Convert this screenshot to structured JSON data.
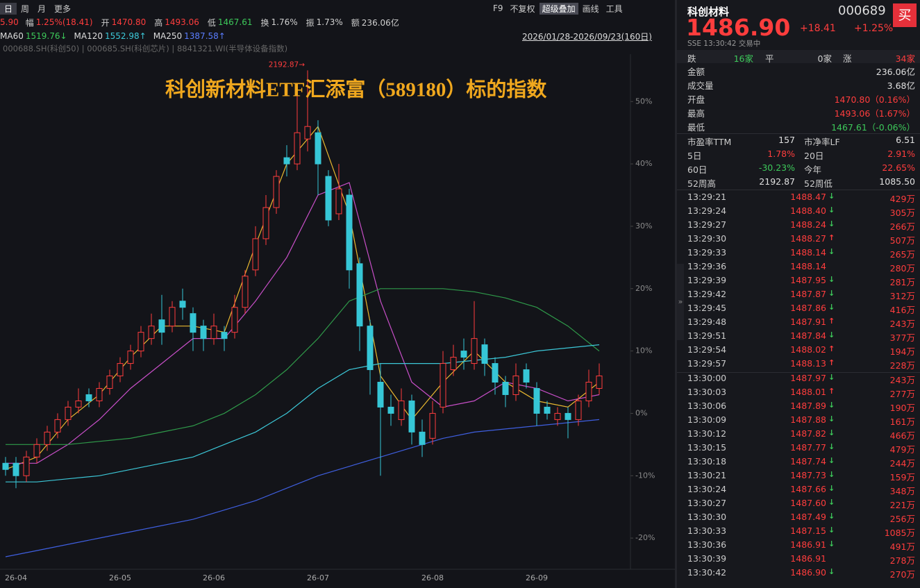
{
  "toolbar": {
    "periods": [
      "日",
      "周",
      "月",
      "更多"
    ],
    "tools": [
      "F9",
      "不复权",
      "超级叠加",
      "画线",
      "工具"
    ]
  },
  "quote_bar": {
    "lead": "5.90",
    "items": [
      {
        "label": "幅",
        "value": "1.25%(18.41)",
        "color": "#ff3d3d"
      },
      {
        "label": "开",
        "value": "1470.80",
        "color": "#ff3d3d"
      },
      {
        "label": "高",
        "value": "1493.06",
        "color": "#ff3d3d"
      },
      {
        "label": "低",
        "value": "1467.61",
        "color": "#3dc95a"
      },
      {
        "label": "换",
        "value": "1.76%",
        "color": "#d0d0d0"
      },
      {
        "label": "振",
        "value": "1.73%",
        "color": "#d0d0d0"
      },
      {
        "label": "额",
        "value": "236.06亿",
        "color": "#d0d0d0"
      }
    ]
  },
  "ma_legend": [
    {
      "name": "MA60",
      "value": "1519.76↓",
      "color": "#3dc95a"
    },
    {
      "name": "MA120",
      "value": "1552.98↑",
      "color": "#3cc8d8"
    },
    {
      "name": "MA250",
      "value": "1387.58↑",
      "color": "#5a7dff"
    }
  ],
  "overlay_text": "000688.SH(科创50) | 000685.SH(科创芯片) | 8841321.WI(半导体设备指数)",
  "date_range": "2026/01/28-2026/09/23(160日)",
  "chart_data": {
    "type": "candlestick",
    "title": "科创新材料ETF汇添富（589180）标的指数",
    "annotation": "2192.87→",
    "categories": [
      null,
      "26-04",
      null,
      null,
      null,
      null,
      null,
      null,
      null,
      null,
      null,
      "26-05",
      null,
      null,
      null,
      null,
      null,
      null,
      null,
      null,
      "26-06",
      null,
      null,
      null,
      null,
      null,
      null,
      null,
      null,
      null,
      "26-07",
      null,
      null,
      null,
      null,
      null,
      null,
      null,
      null,
      null,
      null,
      "26-08",
      null,
      null,
      null,
      null,
      null,
      null,
      null,
      null,
      null,
      "26-09",
      null,
      null,
      null,
      null,
      null,
      null
    ],
    "open": [
      -8,
      -8,
      -10,
      -7,
      -5,
      -3,
      -1,
      1,
      3,
      2,
      4,
      6,
      8,
      10,
      12,
      15,
      14,
      18,
      16,
      14,
      12,
      13,
      13,
      17,
      23,
      28,
      33,
      41,
      40,
      44,
      45,
      38,
      32,
      35,
      24,
      14,
      5,
      1,
      -1,
      2,
      -3,
      -4,
      1,
      7,
      10,
      8,
      11,
      8,
      5,
      3,
      7,
      4,
      1,
      -1,
      0,
      -1,
      2,
      4
    ],
    "high": [
      -7,
      -7,
      -6,
      -4,
      -2,
      0,
      2,
      4,
      4,
      5,
      7,
      9,
      11,
      14,
      16,
      19,
      18,
      20,
      17,
      15,
      16,
      14,
      19,
      23,
      30,
      35,
      39,
      43,
      52,
      55,
      47,
      39,
      40,
      36,
      25,
      15,
      8,
      3,
      4,
      3,
      -1,
      2,
      10,
      11,
      12,
      18,
      12,
      9,
      6,
      8,
      8,
      5,
      2,
      1,
      1,
      3,
      7,
      8
    ],
    "low": [
      -10,
      -12,
      -11,
      -8,
      -6,
      -4,
      -2,
      0,
      1,
      1,
      3,
      5,
      7,
      9,
      11,
      11,
      13,
      15,
      10,
      10,
      11,
      10,
      12,
      16,
      22,
      27,
      32,
      38,
      39,
      42,
      35,
      30,
      31,
      20,
      10,
      3,
      -10,
      -2,
      -2,
      -5,
      -7,
      -5,
      0,
      6,
      7,
      7,
      6,
      3,
      1,
      2,
      4,
      -2,
      -1,
      -2,
      -4,
      -2,
      1,
      3
    ],
    "close": [
      -9,
      -10,
      -7,
      -5,
      -3,
      -1,
      1,
      2,
      2,
      4,
      6,
      8,
      10,
      13,
      14,
      13,
      17,
      17,
      13,
      12,
      14,
      12,
      17,
      22,
      28,
      33,
      38,
      40,
      45,
      46,
      40,
      31,
      36,
      23,
      14,
      7,
      1,
      0,
      2,
      -3,
      -5,
      0,
      8,
      9,
      9,
      12,
      8,
      5,
      3,
      6,
      5,
      0,
      0,
      0,
      -1,
      2,
      5,
      6
    ],
    "up_color": "#ff3d3d",
    "down_color": "#36c6d6",
    "lines": [
      {
        "color": "#e8b830",
        "x": [
          0,
          3,
          6,
          9,
          12,
          15,
          18,
          21,
          24,
          27,
          30,
          33,
          36,
          39,
          42,
          45,
          48,
          51,
          54,
          57
        ],
        "values": [
          -9,
          -7,
          -1,
          3,
          9,
          14,
          14,
          13,
          27,
          40,
          46,
          32,
          6,
          -1,
          5,
          10,
          5,
          2,
          1,
          5
        ]
      },
      {
        "color": "#c84fc8",
        "x": [
          0,
          3,
          6,
          9,
          12,
          15,
          18,
          21,
          24,
          27,
          30,
          33,
          36,
          39,
          42,
          45,
          48,
          51,
          54,
          57
        ],
        "values": [
          -8,
          -8,
          -5,
          -1,
          4,
          8,
          12,
          12,
          18,
          25,
          35,
          37,
          18,
          5,
          1,
          2,
          5,
          4,
          2,
          3
        ]
      },
      {
        "color": "#2f9a4a",
        "x": [
          0,
          3,
          6,
          9,
          12,
          15,
          18,
          21,
          24,
          27,
          30,
          33,
          36,
          39,
          42,
          45,
          48,
          51,
          54,
          57
        ],
        "values": [
          -5,
          -5,
          -5,
          -4.5,
          -4,
          -3,
          -2,
          0,
          3,
          7,
          12,
          18,
          20,
          20,
          20,
          19.5,
          18.5,
          17,
          14,
          10
        ]
      },
      {
        "color": "#3cc8d8",
        "x": [
          0,
          3,
          6,
          9,
          12,
          15,
          18,
          21,
          24,
          27,
          30,
          33,
          36,
          39,
          42,
          45,
          48,
          51,
          54,
          57
        ],
        "values": [
          -11,
          -11,
          -10.5,
          -10,
          -9,
          -8,
          -7,
          -5,
          -3,
          0,
          4,
          7,
          8,
          8,
          8,
          8.5,
          9,
          10,
          10.5,
          11
        ]
      },
      {
        "color": "#3f5fe0",
        "x": [
          0,
          3,
          6,
          9,
          12,
          15,
          18,
          21,
          24,
          27,
          30,
          33,
          36,
          39,
          42,
          45,
          48,
          51,
          54,
          57
        ],
        "values": [
          -23,
          -22,
          -21,
          -20,
          -19,
          -18,
          -17,
          -15.5,
          -14,
          -12,
          -10,
          -8.5,
          -7,
          -5.5,
          -4,
          -3,
          -2.5,
          -2,
          -1.5,
          -1
        ]
      }
    ],
    "ylim": [
      -25,
      57.6
    ],
    "yticks": [
      {
        "value": 50,
        "label": "50%"
      },
      {
        "value": 40,
        "label": "40%"
      },
      {
        "value": 30,
        "label": "30%"
      },
      {
        "value": 20,
        "label": "20%"
      },
      {
        "value": 10,
        "label": "10%"
      },
      {
        "value": 0,
        "label": "0%"
      },
      {
        "value": -10,
        "label": "-10%"
      },
      {
        "value": -20,
        "label": "-20%"
      }
    ],
    "grid": false
  },
  "panel": {
    "name": "科创材料",
    "code": "000689",
    "buy": "买",
    "price": "1486.90",
    "change": "+18.41",
    "change_pct": "+1.25%",
    "status": "SSE  13:30:42 交易中",
    "breadth": [
      {
        "label": "跌",
        "value": "16家",
        "color": "#3dc95a"
      },
      {
        "label": "平",
        "value": "0家",
        "color": "#d0d0d0"
      },
      {
        "label": "涨",
        "value": "34家",
        "color": "#ff3d3d"
      }
    ],
    "stats": [
      {
        "label": "金额",
        "value": "236.06亿",
        "color": "#e0e0e0"
      },
      {
        "label": "成交量",
        "value": "3.68亿",
        "color": "#e0e0e0"
      },
      {
        "label": "开盘",
        "value": "1470.80（0.16%）",
        "color": "#ff3d3d"
      },
      {
        "label": "最高",
        "value": "1493.06（1.67%）",
        "color": "#ff3d3d"
      },
      {
        "label": "最低",
        "value": "1467.61（-0.06%）",
        "color": "#3dc95a"
      }
    ],
    "grid": [
      [
        {
          "label": "市盈率TTM",
          "value": "157",
          "color": "#e0e0e0"
        },
        {
          "label": "市净率LF",
          "value": "6.51",
          "color": "#e0e0e0"
        }
      ],
      [
        {
          "label": "5日",
          "value": "1.78%",
          "color": "#ff3d3d"
        },
        {
          "label": "20日",
          "value": "2.91%",
          "color": "#ff3d3d"
        }
      ],
      [
        {
          "label": "60日",
          "value": "-30.23%",
          "color": "#3dc95a"
        },
        {
          "label": "今年",
          "value": "22.65%",
          "color": "#ff3d3d"
        }
      ],
      [
        {
          "label": "52周高",
          "value": "2192.87",
          "color": "#e0e0e0"
        },
        {
          "label": "52周低",
          "value": "1085.50",
          "color": "#e0e0e0"
        }
      ]
    ],
    "trade_groups": [
      [
        {
          "time": "13:29:21",
          "price": "1488.47",
          "dir": "down",
          "volume": "429万"
        },
        {
          "time": "13:29:24",
          "price": "1488.40",
          "dir": "down",
          "volume": "305万"
        },
        {
          "time": "13:29:27",
          "price": "1488.24",
          "dir": "down",
          "volume": "266万"
        },
        {
          "time": "13:29:30",
          "price": "1488.27",
          "dir": "up",
          "volume": "507万"
        },
        {
          "time": "13:29:33",
          "price": "1488.14",
          "dir": "down",
          "volume": "265万"
        },
        {
          "time": "13:29:36",
          "price": "1488.14",
          "volume": "280万"
        },
        {
          "time": "13:29:39",
          "price": "1487.95",
          "dir": "down",
          "volume": "281万"
        },
        {
          "time": "13:29:42",
          "price": "1487.87",
          "dir": "down",
          "volume": "312万"
        },
        {
          "time": "13:29:45",
          "price": "1487.86",
          "dir": "down",
          "volume": "416万"
        },
        {
          "time": "13:29:48",
          "price": "1487.91",
          "dir": "up",
          "volume": "243万"
        },
        {
          "time": "13:29:51",
          "price": "1487.84",
          "dir": "down",
          "volume": "377万"
        },
        {
          "time": "13:29:54",
          "price": "1488.02",
          "dir": "up",
          "volume": "194万"
        },
        {
          "time": "13:29:57",
          "price": "1488.13",
          "dir": "up",
          "volume": "228万"
        }
      ],
      [
        {
          "time": "13:30:00",
          "price": "1487.97",
          "dir": "down",
          "volume": "243万"
        },
        {
          "time": "13:30:03",
          "price": "1488.01",
          "dir": "up",
          "volume": "277万"
        },
        {
          "time": "13:30:06",
          "price": "1487.89",
          "dir": "down",
          "volume": "190万"
        },
        {
          "time": "13:30:09",
          "price": "1487.88",
          "dir": "down",
          "volume": "161万"
        },
        {
          "time": "13:30:12",
          "price": "1487.82",
          "dir": "down",
          "volume": "466万"
        },
        {
          "time": "13:30:15",
          "price": "1487.77",
          "dir": "down",
          "volume": "479万"
        },
        {
          "time": "13:30:18",
          "price": "1487.74",
          "dir": "down",
          "volume": "244万"
        },
        {
          "time": "13:30:21",
          "price": "1487.73",
          "dir": "down",
          "volume": "159万"
        },
        {
          "time": "13:30:24",
          "price": "1487.66",
          "dir": "down",
          "volume": "348万"
        },
        {
          "time": "13:30:27",
          "price": "1487.60",
          "dir": "down",
          "volume": "221万"
        },
        {
          "time": "13:30:30",
          "price": "1487.49",
          "dir": "down",
          "volume": "256万"
        },
        {
          "time": "13:30:33",
          "price": "1487.15",
          "dir": "down",
          "volume": "1085万"
        },
        {
          "time": "13:30:36",
          "price": "1486.91",
          "dir": "down",
          "volume": "491万"
        },
        {
          "time": "13:30:39",
          "price": "1486.91",
          "volume": "278万"
        },
        {
          "time": "13:30:42",
          "price": "1486.90",
          "dir": "down",
          "volume": "270万"
        }
      ]
    ]
  }
}
